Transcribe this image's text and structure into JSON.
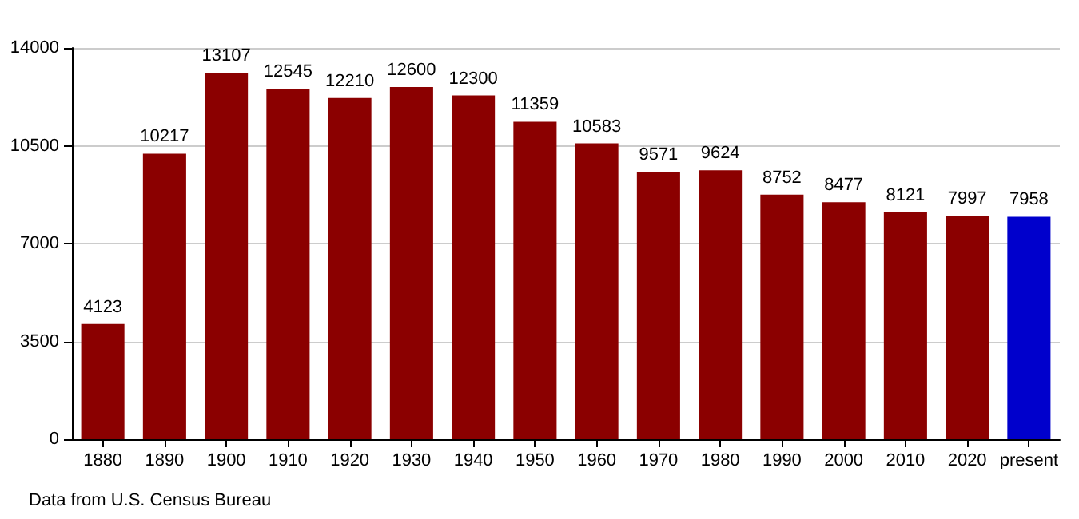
{
  "chart_data": {
    "type": "bar",
    "categories": [
      "1880",
      "1890",
      "1900",
      "1910",
      "1920",
      "1930",
      "1940",
      "1950",
      "1960",
      "1970",
      "1980",
      "1990",
      "2000",
      "2010",
      "2020",
      "present"
    ],
    "values": [
      4123,
      10217,
      13107,
      12545,
      12210,
      12600,
      12300,
      11359,
      10583,
      9571,
      9624,
      8752,
      8477,
      8121,
      7997,
      7958
    ],
    "colors": [
      "#8b0000",
      "#8b0000",
      "#8b0000",
      "#8b0000",
      "#8b0000",
      "#8b0000",
      "#8b0000",
      "#8b0000",
      "#8b0000",
      "#8b0000",
      "#8b0000",
      "#8b0000",
      "#8b0000",
      "#8b0000",
      "#8b0000",
      "#0000cc"
    ],
    "ylim": [
      0,
      14000
    ],
    "yticks": [
      0,
      3500,
      7000,
      10500,
      14000
    ],
    "grid": "y",
    "data_labels": true,
    "annotations": [
      "Data from U.S. Census Bureau"
    ]
  }
}
